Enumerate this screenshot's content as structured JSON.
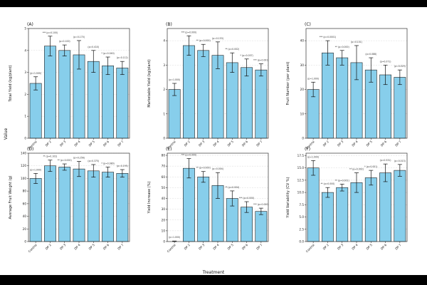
{
  "figure": {
    "ylabel": "Value",
    "xlabel": "Treatment"
  },
  "colors": {
    "bar": "#87ceeb",
    "edge": "#222222"
  },
  "chart_data": [
    {
      "type": "bar",
      "panel": "(A)",
      "ylabel": "Total Yield (kg/plant)",
      "categories": [
        "Control",
        "DP 2",
        "DP 3",
        "DP 4",
        "DP 5",
        "DP 6",
        "DP 7"
      ],
      "values": [
        2.5,
        4.2,
        4.0,
        3.8,
        3.5,
        3.3,
        3.2
      ],
      "errors": [
        0.3,
        0.45,
        0.25,
        0.65,
        0.5,
        0.4,
        0.3
      ],
      "annotations": [
        "(p=1.000)",
        "*** (p=0.100)",
        "(p=0.100)",
        "(p=0.170)",
        "(p=0.410)",
        "* (p=0.040)",
        "(p=0.112)"
      ],
      "ylim": [
        0,
        5
      ],
      "yticks": [
        0,
        1,
        2,
        3,
        4,
        5
      ]
    },
    {
      "type": "bar",
      "panel": "(B)",
      "ylabel": "Marketable Yield (kg/plant)",
      "categories": [
        "Control",
        "DP 2",
        "DP 3",
        "DP 4",
        "DP 5",
        "DP 6",
        "DP 7"
      ],
      "values": [
        2.0,
        3.8,
        3.6,
        3.4,
        3.1,
        2.9,
        2.8
      ],
      "errors": [
        0.25,
        0.4,
        0.25,
        0.55,
        0.4,
        0.35,
        0.25
      ],
      "annotations": [
        "(p=1.000)",
        "*** (p=0.000)",
        "** (p=0.000)",
        "(p=0.153)",
        "** (p=0.002)",
        "* (p=0.037)",
        "*** (p=0.001)"
      ],
      "ylim": [
        0,
        4.5
      ],
      "yticks": [
        0,
        1,
        2,
        3,
        4
      ]
    },
    {
      "type": "bar",
      "panel": "(C)",
      "ylabel": "Fruit Number (per plant)",
      "categories": [
        "Control",
        "DP 2",
        "DP 3",
        "DP 4",
        "DP 5",
        "DP 6",
        "DP 7"
      ],
      "values": [
        20,
        35,
        33,
        31,
        28,
        26,
        25
      ],
      "errors": [
        3,
        5,
        3,
        7,
        5,
        4,
        3
      ],
      "annotations": [
        "(p=1.000)",
        "*** (p=0.0001)",
        "** (p=0.000)",
        "(p=0.101)",
        "(p=0.088)",
        "(p=0.071)",
        "(p=0.029)"
      ],
      "ylim": [
        0,
        45
      ],
      "yticks": [
        0,
        10,
        20,
        30,
        40
      ]
    },
    {
      "type": "bar",
      "panel": "(D)",
      "ylabel": "Average Fruit Weight (g)",
      "categories": [
        "Control",
        "DP 2",
        "DP 3",
        "DP 4",
        "DP 5",
        "DP 6",
        "DP 7"
      ],
      "values": [
        100,
        120,
        118,
        115,
        112,
        110,
        108
      ],
      "errors": [
        8,
        9,
        5,
        12,
        10,
        8,
        6
      ],
      "annotations": [
        "(p=1.000)",
        "** (p=0.102)",
        "** (p=0.000)",
        "(p=0.256)",
        "(p=0.375)",
        "* (p=0.080)",
        "(p=0.195)"
      ],
      "ylim": [
        0,
        140
      ],
      "yticks": [
        0,
        20,
        40,
        60,
        80,
        100,
        120,
        140
      ]
    },
    {
      "type": "bar",
      "panel": "(E)",
      "ylabel": "Yield Increase (%)",
      "categories": [
        "Control",
        "DP 2",
        "DP 3",
        "DP 4",
        "DP 5",
        "DP 6",
        "DP 7"
      ],
      "values": [
        0,
        68,
        60,
        52,
        40,
        32,
        28
      ],
      "errors": [
        0.5,
        9,
        5,
        12,
        7,
        5,
        3
      ],
      "annotations": [
        "(p=1.000)",
        "*** (p=0.000)",
        "** (p=0.000)",
        "(p=0.004)",
        "** (p=0.004)",
        "*** (p=0.000)",
        "*** (p=0.000)"
      ],
      "ylim": [
        0,
        82
      ],
      "yticks": [
        0,
        10,
        20,
        30,
        40,
        50,
        60,
        70,
        80
      ]
    },
    {
      "type": "bar",
      "panel": "(F)",
      "ylabel": "Yield Variability (CV %)",
      "categories": [
        "Control",
        "DP 2",
        "DP 3",
        "DP 4",
        "DP 5",
        "DP 6",
        "DP 7"
      ],
      "values": [
        15.0,
        10.0,
        11.0,
        12.0,
        13.0,
        14.0,
        14.5
      ],
      "errors": [
        1.5,
        1.0,
        0.7,
        2.0,
        1.5,
        1.8,
        1.2
      ],
      "annotations": [
        "(p=1.000)",
        "** (p=0.000)",
        "** (p=0.001)",
        "** (p=0.002)",
        "* (p=0.001)",
        "(p=0.531)",
        "(p=0.013)"
      ],
      "ylim": [
        0,
        18
      ],
      "yticks": [
        0.0,
        2.5,
        5.0,
        7.5,
        10.0,
        12.5,
        15.0,
        17.5
      ]
    }
  ]
}
